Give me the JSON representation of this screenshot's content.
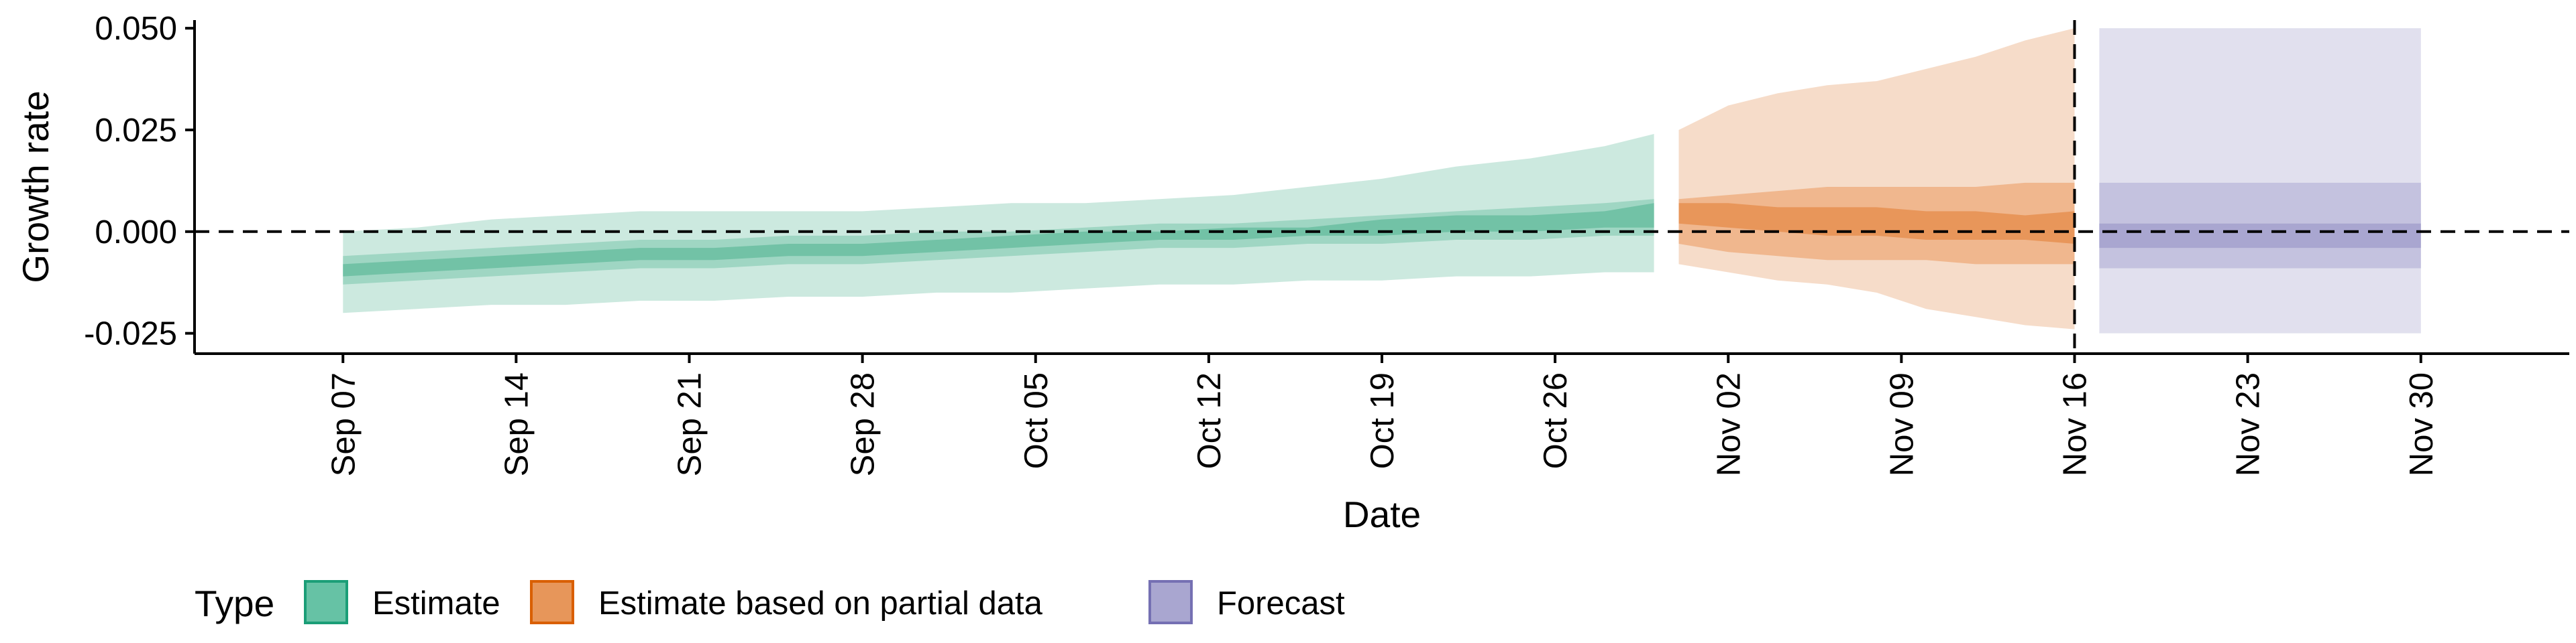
{
  "chart_data": {
    "type": "area",
    "xlabel": "Date",
    "ylabel": "Growth rate",
    "x_range": [
      "2020-09-01",
      "2020-12-06"
    ],
    "ylim": [
      -0.03,
      0.052
    ],
    "y_ticks": [
      -0.025,
      0.0,
      0.025,
      0.05
    ],
    "y_tick_labels": [
      "-0.025",
      "0.000",
      "0.025",
      "0.050"
    ],
    "x_ticks": [
      "2020-09-07",
      "2020-09-14",
      "2020-09-21",
      "2020-09-28",
      "2020-10-05",
      "2020-10-12",
      "2020-10-19",
      "2020-10-26",
      "2020-11-02",
      "2020-11-09",
      "2020-11-16",
      "2020-11-23",
      "2020-11-30"
    ],
    "x_tick_labels": [
      "Sep 07",
      "Sep 14",
      "Sep 21",
      "Sep 28",
      "Oct 05",
      "Oct 12",
      "Oct 19",
      "Oct 26",
      "Nov 02",
      "Nov 09",
      "Nov 16",
      "Nov 23",
      "Nov 30"
    ],
    "reference_lines": {
      "horizontal_y": 0.0,
      "vertical_x": "2020-11-16",
      "style": "dashed"
    },
    "grid": false,
    "legend": {
      "title": "Type",
      "position": "bottom-left",
      "entries": [
        {
          "label": "Estimate",
          "fill": "#66c2a5",
          "stroke": "#1b9e77"
        },
        {
          "label": "Estimate based on partial data",
          "fill": "#e7965a",
          "stroke": "#d95f02"
        },
        {
          "label": "Forecast",
          "fill": "#a9a6d0",
          "stroke": "#7570b3"
        }
      ]
    },
    "series": [
      {
        "name": "Estimate",
        "colors": {
          "outer": "#cce9df",
          "mid": "#9fd6c3",
          "inner": "#72c2a6"
        },
        "x": [
          "2020-09-07",
          "2020-09-10",
          "2020-09-13",
          "2020-09-16",
          "2020-09-19",
          "2020-09-22",
          "2020-09-25",
          "2020-09-28",
          "2020-10-01",
          "2020-10-04",
          "2020-10-07",
          "2020-10-10",
          "2020-10-13",
          "2020-10-16",
          "2020-10-19",
          "2020-10-22",
          "2020-10-25",
          "2020-10-28",
          "2020-10-30"
        ],
        "outer_lower": [
          -0.02,
          -0.019,
          -0.018,
          -0.018,
          -0.017,
          -0.017,
          -0.016,
          -0.016,
          -0.015,
          -0.015,
          -0.014,
          -0.013,
          -0.013,
          -0.012,
          -0.012,
          -0.011,
          -0.011,
          -0.01,
          -0.01
        ],
        "outer_upper": [
          0.0,
          0.001,
          0.003,
          0.004,
          0.005,
          0.005,
          0.005,
          0.005,
          0.006,
          0.007,
          0.007,
          0.008,
          0.009,
          0.011,
          0.013,
          0.016,
          0.018,
          0.021,
          0.024
        ],
        "mid_lower": [
          -0.013,
          -0.012,
          -0.011,
          -0.01,
          -0.009,
          -0.009,
          -0.008,
          -0.008,
          -0.007,
          -0.006,
          -0.005,
          -0.004,
          -0.004,
          -0.003,
          -0.003,
          -0.002,
          -0.002,
          -0.001,
          -0.001
        ],
        "mid_upper": [
          -0.006,
          -0.005,
          -0.004,
          -0.003,
          -0.002,
          -0.002,
          -0.001,
          -0.001,
          0.0,
          0.0,
          0.001,
          0.002,
          0.002,
          0.003,
          0.004,
          0.005,
          0.006,
          0.007,
          0.008
        ],
        "inner_lower": [
          -0.011,
          -0.01,
          -0.009,
          -0.008,
          -0.007,
          -0.007,
          -0.006,
          -0.006,
          -0.005,
          -0.004,
          -0.003,
          -0.002,
          -0.002,
          -0.001,
          -0.001,
          0.0,
          0.0,
          0.001,
          0.001
        ],
        "inner_upper": [
          -0.008,
          -0.007,
          -0.006,
          -0.005,
          -0.004,
          -0.004,
          -0.003,
          -0.003,
          -0.002,
          -0.001,
          0.0,
          0.0,
          0.001,
          0.001,
          0.003,
          0.004,
          0.004,
          0.005,
          0.007
        ]
      },
      {
        "name": "Estimate based on partial data",
        "colors": {
          "outer": "#f6dcc9",
          "mid": "#f0b78e",
          "inner": "#e8965a"
        },
        "x": [
          "2020-10-31",
          "2020-11-02",
          "2020-11-04",
          "2020-11-06",
          "2020-11-08",
          "2020-11-10",
          "2020-11-12",
          "2020-11-14",
          "2020-11-16"
        ],
        "outer_lower": [
          -0.008,
          -0.01,
          -0.012,
          -0.013,
          -0.015,
          -0.019,
          -0.021,
          -0.023,
          -0.024
        ],
        "outer_upper": [
          0.025,
          0.031,
          0.034,
          0.036,
          0.037,
          0.04,
          0.043,
          0.047,
          0.05
        ],
        "mid_lower": [
          -0.003,
          -0.005,
          -0.006,
          -0.007,
          -0.007,
          -0.007,
          -0.008,
          -0.008,
          -0.008
        ],
        "mid_upper": [
          0.008,
          0.009,
          0.01,
          0.011,
          0.011,
          0.011,
          0.011,
          0.012,
          0.012
        ],
        "inner_lower": [
          0.002,
          0.001,
          0.0,
          -0.001,
          -0.001,
          -0.002,
          -0.002,
          -0.002,
          -0.003
        ],
        "inner_upper": [
          0.007,
          0.007,
          0.006,
          0.006,
          0.006,
          0.005,
          0.005,
          0.004,
          0.005
        ]
      },
      {
        "name": "Forecast",
        "colors": {
          "outer": "#e1e0ee",
          "mid": "#c4c2df",
          "inner": "#a9a6d0"
        },
        "x": [
          "2020-11-17",
          "2020-11-30"
        ],
        "outer_lower": [
          -0.025,
          -0.025
        ],
        "outer_upper": [
          0.05,
          0.05
        ],
        "mid_lower": [
          -0.009,
          -0.009
        ],
        "mid_upper": [
          0.012,
          0.012
        ],
        "inner_lower": [
          -0.004,
          -0.004
        ],
        "inner_upper": [
          0.002,
          0.002
        ]
      }
    ]
  }
}
